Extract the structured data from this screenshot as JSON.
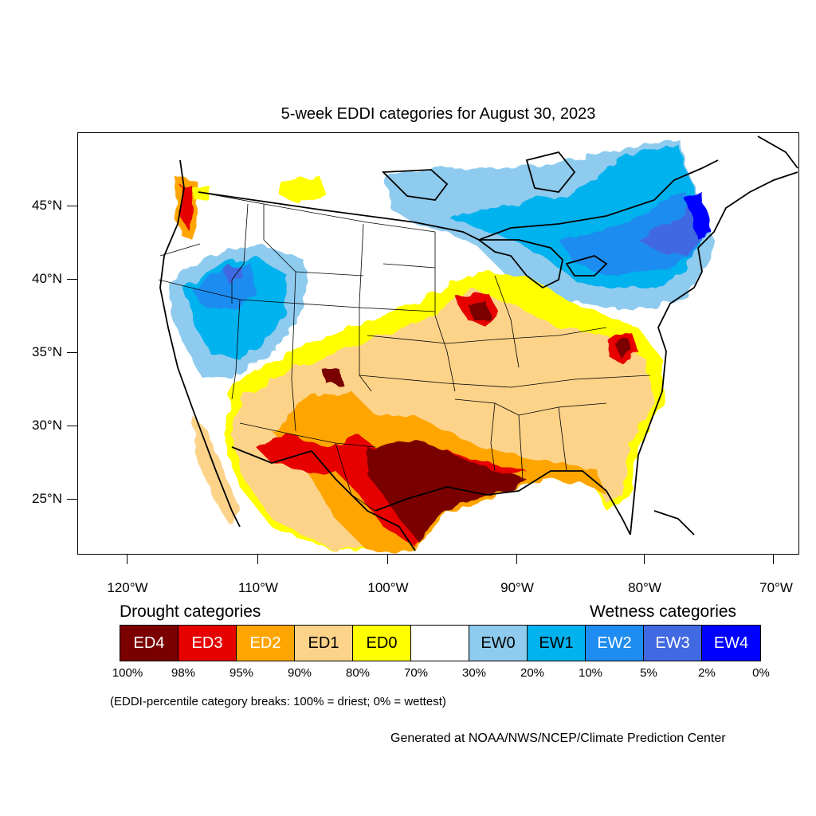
{
  "title": "5-week EDDI categories for August 30, 2023",
  "latitude_labels": [
    "45°N",
    "40°N",
    "35°N",
    "30°N",
    "25°N"
  ],
  "longitude_labels": [
    "120°W",
    "110°W",
    "100°W",
    "90°W",
    "80°W",
    "70°W"
  ],
  "legend": {
    "drought_heading": "Drought categories",
    "wetness_heading": "Wetness categories",
    "categories": [
      {
        "label": "ED4",
        "color": "#7a0000",
        "text_color": "#ffffff"
      },
      {
        "label": "ED3",
        "color": "#e60000",
        "text_color": "#ffffff"
      },
      {
        "label": "ED2",
        "color": "#ffa500",
        "text_color": "#ffffff"
      },
      {
        "label": "ED1",
        "color": "#fdd38a",
        "text_color": "#000000"
      },
      {
        "label": "ED0",
        "color": "#ffff00",
        "text_color": "#000000"
      },
      {
        "label": "",
        "color": "#ffffff",
        "text_color": "#000000"
      },
      {
        "label": "EW0",
        "color": "#8ecbee",
        "text_color": "#000000"
      },
      {
        "label": "EW1",
        "color": "#00b2ee",
        "text_color": "#000000"
      },
      {
        "label": "EW2",
        "color": "#1e8cf0",
        "text_color": "#ffffff"
      },
      {
        "label": "EW3",
        "color": "#4169e1",
        "text_color": "#ffffff"
      },
      {
        "label": "EW4",
        "color": "#0000ff",
        "text_color": "#ffffff"
      }
    ],
    "percentiles": [
      "100%",
      "98%",
      "95%",
      "90%",
      "80%",
      "70%",
      "30%",
      "20%",
      "10%",
      "5%",
      "2%",
      "0%"
    ]
  },
  "note": "(EDDI-percentile category breaks: 100% = driest; 0% = wettest)",
  "credit": "Generated at NOAA/NWS/NCEP/Climate Prediction Center"
}
